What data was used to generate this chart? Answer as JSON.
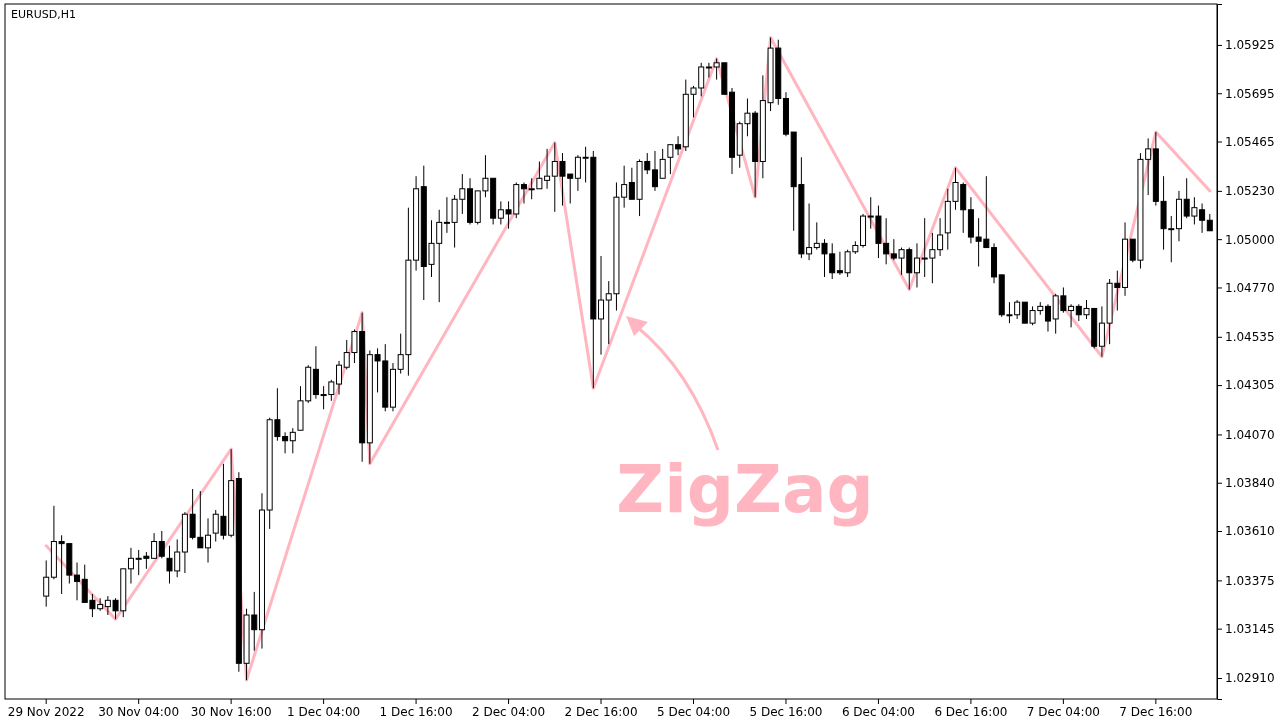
{
  "chart_data": {
    "type": "candlestick",
    "title": "EURUSD,H1",
    "color": "#000000",
    "categories": [
      "29 Nov 2022",
      null,
      null,
      null,
      null,
      null,
      null,
      null,
      null,
      null,
      null,
      null,
      "30 Nov 04:00",
      null,
      null,
      null,
      null,
      null,
      null,
      null,
      null,
      null,
      null,
      null,
      "30 Nov 16:00",
      null,
      null,
      null,
      null,
      null,
      null,
      null,
      null,
      null,
      null,
      null,
      "1 Dec 04:00",
      null,
      null,
      null,
      null,
      null,
      null,
      null,
      null,
      null,
      null,
      null,
      "1 Dec 16:00",
      null,
      null,
      null,
      null,
      null,
      null,
      null,
      null,
      null,
      null,
      null,
      "2 Dec 04:00",
      null,
      null,
      null,
      null,
      null,
      null,
      null,
      null,
      null,
      null,
      null,
      "2 Dec 16:00",
      null,
      null,
      null,
      null,
      null,
      null,
      null,
      null,
      null,
      null,
      null,
      "5 Dec 04:00",
      null,
      null,
      null,
      null,
      null,
      null,
      null,
      null,
      null,
      null,
      null,
      "5 Dec 16:00",
      null,
      null,
      null,
      null,
      null,
      null,
      null,
      null,
      null,
      null,
      null,
      "6 Dec 04:00",
      null,
      null,
      null,
      null,
      null,
      null,
      null,
      null,
      null,
      null,
      null,
      "6 Dec 16:00",
      null,
      null,
      null,
      null,
      null,
      null,
      null,
      null,
      null,
      null,
      null,
      "7 Dec 04:00",
      null,
      null,
      null,
      null,
      null,
      null,
      null,
      null,
      null,
      null,
      null,
      "7 Dec 16:00",
      null,
      null,
      null,
      null,
      null,
      null,
      null
    ],
    "ohlc": [
      [
        1.033,
        1.0347,
        1.0325,
        1.0339
      ],
      [
        1.0339,
        1.0373,
        1.0338,
        1.0356
      ],
      [
        1.0356,
        1.0359,
        1.0331,
        1.0355
      ],
      [
        1.0355,
        1.0355,
        1.0336,
        1.034
      ],
      [
        1.034,
        1.0346,
        1.0328,
        1.0337
      ],
      [
        1.0338,
        1.0345,
        1.0327,
        1.0327
      ],
      [
        1.0328,
        1.0331,
        1.032,
        1.0324
      ],
      [
        1.0324,
        1.0329,
        1.0323,
        1.0326
      ],
      [
        1.0325,
        1.033,
        1.0321,
        1.0328
      ],
      [
        1.0328,
        1.0329,
        1.0319,
        1.0323
      ],
      [
        1.0323,
        1.0343,
        1.032,
        1.0343
      ],
      [
        1.0343,
        1.0353,
        1.0336,
        1.0348
      ],
      [
        1.0348,
        1.0352,
        1.034,
        1.0348
      ],
      [
        1.0349,
        1.0351,
        1.0343,
        1.0348
      ],
      [
        1.0348,
        1.036,
        1.0348,
        1.0356
      ],
      [
        1.0356,
        1.0361,
        1.0348,
        1.0349
      ],
      [
        1.0348,
        1.0354,
        1.0336,
        1.0342
      ],
      [
        1.0342,
        1.0357,
        1.0339,
        1.0351
      ],
      [
        1.0351,
        1.037,
        1.0341,
        1.0369
      ],
      [
        1.0369,
        1.0381,
        1.0357,
        1.0358
      ],
      [
        1.0358,
        1.038,
        1.0353,
        1.0353
      ],
      [
        1.0353,
        1.0367,
        1.0346,
        1.0359
      ],
      [
        1.036,
        1.0371,
        1.0356,
        1.0369
      ],
      [
        1.0368,
        1.0393,
        1.0357,
        1.0359
      ],
      [
        1.0359,
        1.04,
        1.0358,
        1.0385
      ],
      [
        1.0386,
        1.0389,
        1.0294,
        1.0298
      ],
      [
        1.0298,
        1.0324,
        1.029,
        1.0321
      ],
      [
        1.0321,
        1.0332,
        1.0304,
        1.0314
      ],
      [
        1.0314,
        1.0379,
        1.0305,
        1.0371
      ],
      [
        1.0371,
        1.0415,
        1.0362,
        1.0414
      ],
      [
        1.0414,
        1.0429,
        1.0404,
        1.0406
      ],
      [
        1.0406,
        1.0408,
        1.0398,
        1.0404
      ],
      [
        1.0404,
        1.041,
        1.0398,
        1.0408
      ],
      [
        1.0409,
        1.043,
        1.0409,
        1.0423
      ],
      [
        1.0423,
        1.044,
        1.0422,
        1.0439
      ],
      [
        1.0438,
        1.0449,
        1.0424,
        1.0426
      ],
      [
        1.0426,
        1.043,
        1.0419,
        1.0426
      ],
      [
        1.0426,
        1.0433,
        1.0423,
        1.0432
      ],
      [
        1.0431,
        1.0442,
        1.0426,
        1.044
      ],
      [
        1.0439,
        1.0452,
        1.0438,
        1.0446
      ],
      [
        1.0446,
        1.0457,
        1.0441,
        1.0456
      ],
      [
        1.0456,
        1.0465,
        1.0394,
        1.0403
      ],
      [
        1.0403,
        1.0447,
        1.0393,
        1.0445
      ],
      [
        1.0445,
        1.0448,
        1.0427,
        1.0442
      ],
      [
        1.0442,
        1.045,
        1.0418,
        1.042
      ],
      [
        1.042,
        1.0441,
        1.0418,
        1.0438
      ],
      [
        1.0438,
        1.0455,
        1.0436,
        1.0445
      ],
      [
        1.0445,
        1.0515,
        1.0435,
        1.049
      ],
      [
        1.049,
        1.053,
        1.0485,
        1.0524
      ],
      [
        1.0525,
        1.0535,
        1.0471,
        1.0487
      ],
      [
        1.0488,
        1.0509,
        1.0482,
        1.0498
      ],
      [
        1.0498,
        1.0514,
        1.047,
        1.0508
      ],
      [
        1.0508,
        1.052,
        1.0503,
        1.0508
      ],
      [
        1.0508,
        1.0521,
        1.0496,
        1.0519
      ],
      [
        1.0519,
        1.0531,
        1.0512,
        1.0524
      ],
      [
        1.0524,
        1.0529,
        1.0507,
        1.0508
      ],
      [
        1.0508,
        1.0523,
        1.0507,
        1.0523
      ],
      [
        1.0523,
        1.054,
        1.052,
        1.0529
      ],
      [
        1.0529,
        1.0529,
        1.0507,
        1.051
      ],
      [
        1.051,
        1.0518,
        1.0507,
        1.0514
      ],
      [
        1.0514,
        1.0518,
        1.0505,
        1.0512
      ],
      [
        1.0512,
        1.0527,
        1.051,
        1.0526
      ],
      [
        1.0526,
        1.0527,
        1.0517,
        1.0524
      ],
      [
        1.0524,
        1.0529,
        1.0519,
        1.0524
      ],
      [
        1.0524,
        1.0537,
        1.0524,
        1.0529
      ],
      [
        1.0528,
        1.0543,
        1.0524,
        1.053
      ],
      [
        1.053,
        1.0546,
        1.0513,
        1.0537
      ],
      [
        1.0537,
        1.0541,
        1.0516,
        1.053
      ],
      [
        1.0531,
        1.0531,
        1.0517,
        1.0529
      ],
      [
        1.0529,
        1.054,
        1.0523,
        1.0539
      ],
      [
        1.0539,
        1.0544,
        1.0527,
        1.0539
      ],
      [
        1.0539,
        1.0542,
        1.0429,
        1.0462
      ],
      [
        1.0462,
        1.0492,
        1.0445,
        1.0471
      ],
      [
        1.0471,
        1.048,
        1.045,
        1.0474
      ],
      [
        1.0474,
        1.0527,
        1.0466,
        1.052
      ],
      [
        1.052,
        1.0535,
        1.0515,
        1.0526
      ],
      [
        1.0527,
        1.0534,
        1.0519,
        1.0519
      ],
      [
        1.0519,
        1.0538,
        1.0511,
        1.0537
      ],
      [
        1.0537,
        1.0541,
        1.0531,
        1.0533
      ],
      [
        1.0533,
        1.0542,
        1.0523,
        1.0525
      ],
      [
        1.0529,
        1.0543,
        1.0529,
        1.0538
      ],
      [
        1.0539,
        1.0545,
        1.0531,
        1.0545
      ],
      [
        1.0545,
        1.0549,
        1.054,
        1.0543
      ],
      [
        1.0544,
        1.0576,
        1.0542,
        1.0569
      ],
      [
        1.0569,
        1.0573,
        1.0558,
        1.0572
      ],
      [
        1.0572,
        1.0584,
        1.0568,
        1.0582
      ],
      [
        1.0582,
        1.0584,
        1.0577,
        1.0582
      ],
      [
        1.0582,
        1.0586,
        1.0576,
        1.0584
      ],
      [
        1.0584,
        1.0584,
        1.0569,
        1.0569
      ],
      [
        1.057,
        1.0572,
        1.0531,
        1.0539
      ],
      [
        1.054,
        1.0556,
        1.0534,
        1.0555
      ],
      [
        1.0555,
        1.0567,
        1.0549,
        1.056
      ],
      [
        1.056,
        1.0561,
        1.052,
        1.0537
      ],
      [
        1.0537,
        1.0578,
        1.0529,
        1.0566
      ],
      [
        1.0565,
        1.0596,
        1.0561,
        1.0591
      ],
      [
        1.0591,
        1.0595,
        1.0564,
        1.0567
      ],
      [
        1.0567,
        1.057,
        1.0549,
        1.055
      ],
      [
        1.0551,
        1.0551,
        1.0504,
        1.0525
      ],
      [
        1.0526,
        1.0539,
        1.0491,
        1.0493
      ],
      [
        1.0493,
        1.0517,
        1.049,
        1.0496
      ],
      [
        1.0496,
        1.0508,
        1.0495,
        1.0498
      ],
      [
        1.0498,
        1.05,
        1.0482,
        1.0493
      ],
      [
        1.0493,
        1.0498,
        1.0481,
        1.0484
      ],
      [
        1.0485,
        1.0494,
        1.0483,
        1.0484
      ],
      [
        1.0484,
        1.0495,
        1.0482,
        1.0494
      ],
      [
        1.0494,
        1.0499,
        1.0493,
        1.0497
      ],
      [
        1.0497,
        1.0512,
        1.0496,
        1.0511
      ],
      [
        1.0511,
        1.052,
        1.0505,
        1.0511
      ],
      [
        1.0511,
        1.0516,
        1.0491,
        1.0498
      ],
      [
        1.0498,
        1.051,
        1.0488,
        1.0493
      ],
      [
        1.0493,
        1.05,
        1.049,
        1.0491
      ],
      [
        1.0491,
        1.0496,
        1.0483,
        1.0495
      ],
      [
        1.0495,
        1.0496,
        1.0476,
        1.0484
      ],
      [
        1.0484,
        1.0498,
        1.0477,
        1.0491
      ],
      [
        1.0491,
        1.051,
        1.0482,
        1.0491
      ],
      [
        1.0491,
        1.0503,
        1.0479,
        1.0495
      ],
      [
        1.0495,
        1.051,
        1.0492,
        1.0502
      ],
      [
        1.0503,
        1.0524,
        1.0495,
        1.0518
      ],
      [
        1.0518,
        1.0534,
        1.0514,
        1.0527
      ],
      [
        1.0526,
        1.0527,
        1.0503,
        1.0514
      ],
      [
        1.0514,
        1.052,
        1.0498,
        1.0501
      ],
      [
        1.0501,
        1.051,
        1.0487,
        1.0499
      ],
      [
        1.05,
        1.053,
        1.0496,
        1.0496
      ],
      [
        1.0496,
        1.0498,
        1.0479,
        1.0482
      ],
      [
        1.0483,
        1.0483,
        1.0463,
        1.0464
      ],
      [
        1.0464,
        1.047,
        1.046,
        1.0464
      ],
      [
        1.0464,
        1.0471,
        1.0462,
        1.047
      ],
      [
        1.047,
        1.047,
        1.046,
        1.046
      ],
      [
        1.046,
        1.0468,
        1.0459,
        1.0466
      ],
      [
        1.0466,
        1.047,
        1.0464,
        1.0468
      ],
      [
        1.0468,
        1.0469,
        1.0456,
        1.0461
      ],
      [
        1.0462,
        1.0474,
        1.0455,
        1.0473
      ],
      [
        1.0473,
        1.0477,
        1.0465,
        1.0466
      ],
      [
        1.0466,
        1.0469,
        1.0458,
        1.0468
      ],
      [
        1.0468,
        1.0469,
        1.0461,
        1.0464
      ],
      [
        1.0464,
        1.0471,
        1.0462,
        1.0467
      ],
      [
        1.0467,
        1.0467,
        1.0448,
        1.0449
      ],
      [
        1.0449,
        1.0468,
        1.0444,
        1.046
      ],
      [
        1.046,
        1.0481,
        1.045,
        1.0479
      ],
      [
        1.0479,
        1.0485,
        1.0466,
        1.0477
      ],
      [
        1.0477,
        1.0508,
        1.0473,
        1.05
      ],
      [
        1.05,
        1.05,
        1.0489,
        1.049
      ],
      [
        1.049,
        1.0541,
        1.0486,
        1.0538
      ],
      [
        1.0538,
        1.0548,
        1.0521,
        1.0543
      ],
      [
        1.0543,
        1.0551,
        1.0516,
        1.0518
      ],
      [
        1.0518,
        1.053,
        1.0495,
        1.0505
      ],
      [
        1.0505,
        1.0511,
        1.0489,
        1.0505
      ],
      [
        1.0505,
        1.0523,
        1.0499,
        1.0519
      ],
      [
        1.0519,
        1.0529,
        1.051,
        1.0511
      ],
      [
        1.0511,
        1.052,
        1.0507,
        1.0515
      ],
      [
        1.0514,
        1.0517,
        1.0503,
        1.0509
      ],
      [
        1.0509,
        1.0512,
        1.0504,
        1.0504
      ]
    ],
    "series": [
      {
        "type": "line",
        "color": "#ffb6c1",
        "values": [
          1.0354,
          null,
          null,
          null,
          null,
          null,
          null,
          null,
          null,
          1.0319,
          null,
          null,
          null,
          null,
          null,
          null,
          null,
          null,
          null,
          null,
          null,
          null,
          null,
          null,
          1.04,
          null,
          1.029,
          null,
          null,
          null,
          null,
          null,
          null,
          null,
          null,
          null,
          null,
          null,
          null,
          null,
          null,
          1.0465,
          1.0393,
          null,
          null,
          null,
          null,
          null,
          null,
          null,
          null,
          null,
          null,
          null,
          null,
          null,
          null,
          null,
          null,
          null,
          null,
          null,
          null,
          null,
          null,
          null,
          1.0546,
          null,
          null,
          null,
          null,
          1.0429,
          null,
          null,
          null,
          null,
          null,
          null,
          null,
          null,
          null,
          null,
          null,
          null,
          null,
          null,
          null,
          1.0586,
          null,
          null,
          null,
          null,
          1.052,
          null,
          1.0596,
          null,
          null,
          null,
          null,
          null,
          null,
          null,
          null,
          null,
          null,
          null,
          null,
          null,
          null,
          null,
          null,
          null,
          1.0476,
          null,
          null,
          null,
          null,
          null,
          1.0534,
          null,
          null,
          null,
          null,
          null,
          null,
          null,
          null,
          null,
          null,
          null,
          null,
          null,
          null,
          null,
          null,
          null,
          null,
          1.0444,
          null,
          null,
          null,
          null,
          null,
          null,
          1.0551,
          null,
          null,
          null,
          null,
          null,
          null,
          1.0523
        ]
      }
    ],
    "ylim": [
      1.0281,
      1.0612
    ],
    "yticks": [
      {
        "value": 1.0291,
        "label": "1.02910"
      },
      1.03145,
      1.03375,
      {
        "value": 1.0361,
        "label": "1.03610"
      },
      {
        "value": 1.0384,
        "label": "1.03840"
      },
      {
        "value": 1.0407,
        "label": "1.04070"
      },
      1.04305,
      1.04535,
      {
        "value": 1.0477,
        "label": "1.04770"
      },
      {
        "value": 1.05,
        "label": "1.05000"
      },
      {
        "value": 1.0523,
        "label": "1.05230"
      },
      1.05465,
      1.05695,
      1.05925
    ],
    "annotations": [
      "ZigZag"
    ]
  }
}
